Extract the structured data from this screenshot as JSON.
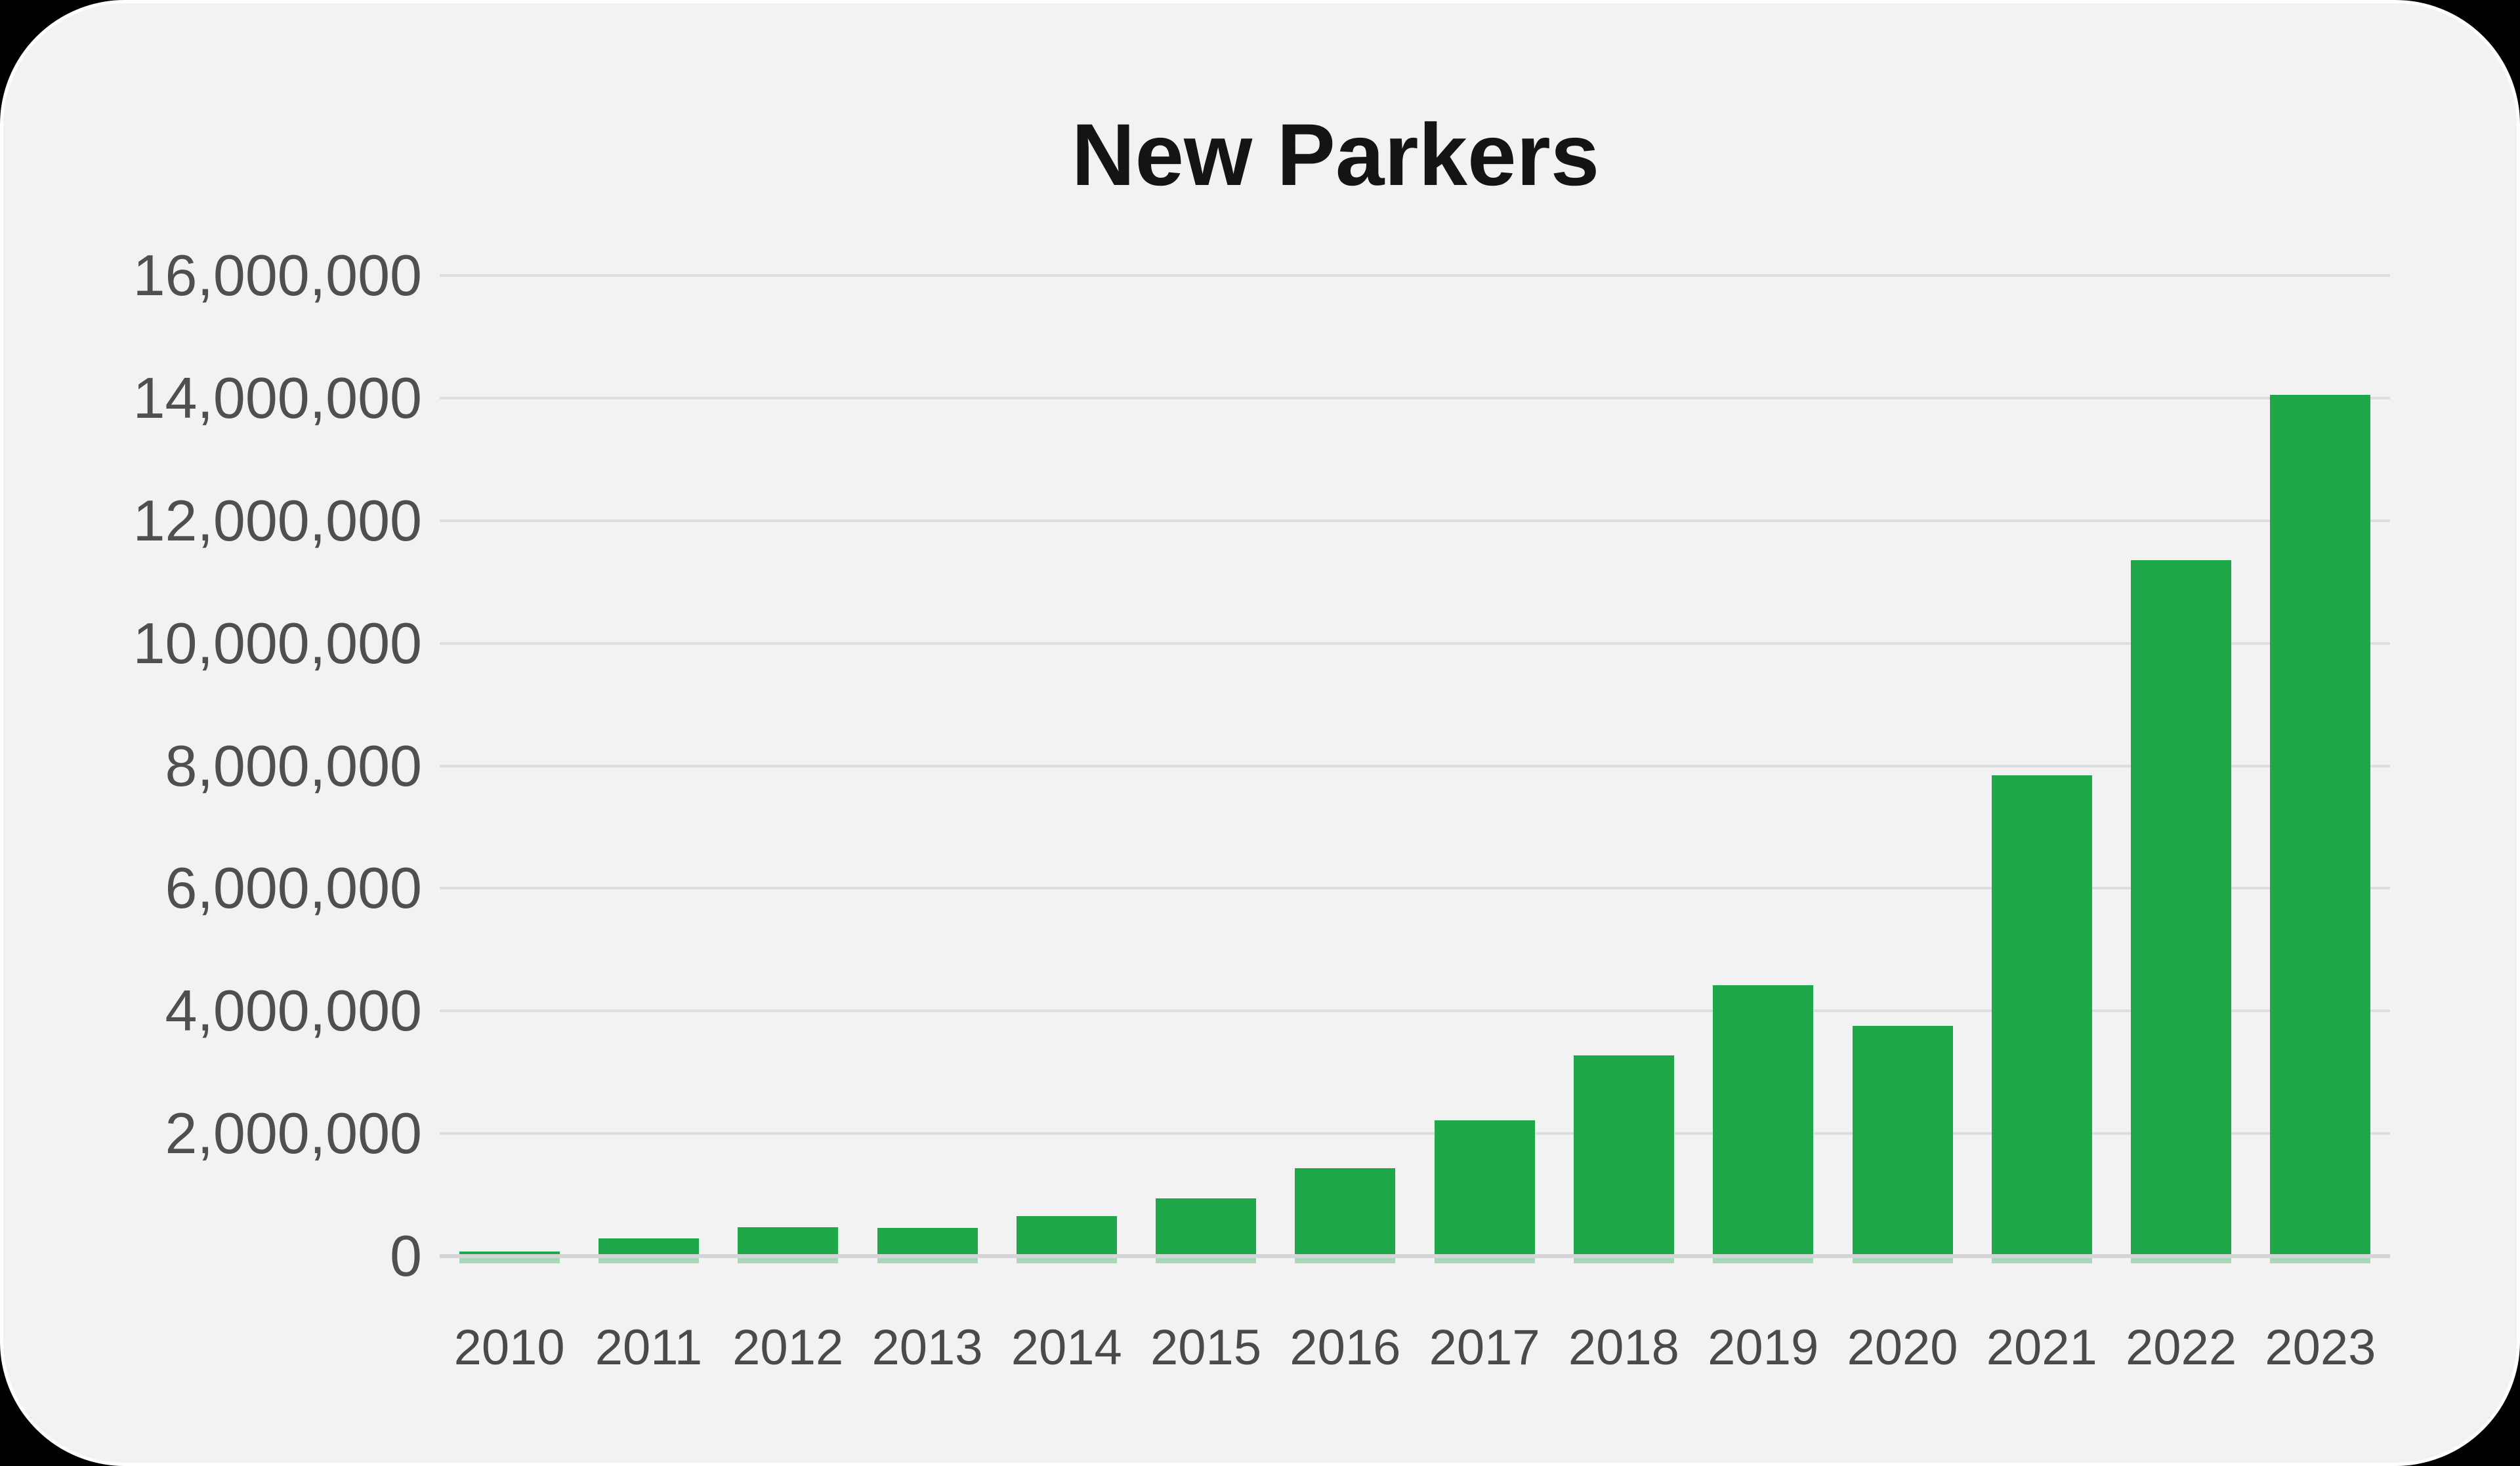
{
  "title": "New Parkers",
  "colors": {
    "page_background": "#000000",
    "card_background": "#f2f2f3",
    "card_border": "#ffffff",
    "bar_fill": "#1fa84a",
    "bar_reflection": "rgba(31,168,74,0.35)",
    "gridline": "#dddddd",
    "baseline": "#d5d5d7",
    "y_label": "#4f4f52",
    "x_label": "#4a4a4d",
    "title_text": "#141414"
  },
  "chart_data": {
    "type": "bar",
    "title": "New Parkers",
    "xlabel": "",
    "ylabel": "",
    "categories": [
      "2010",
      "2011",
      "2012",
      "2013",
      "2014",
      "2015",
      "2016",
      "2017",
      "2018",
      "2019",
      "2020",
      "2021",
      "2022",
      "2023"
    ],
    "values": [
      70000,
      290000,
      470000,
      460000,
      650000,
      940000,
      1430000,
      2220000,
      3280000,
      4420000,
      3760000,
      7850000,
      11350000,
      14050000
    ],
    "ylim": [
      0,
      16000000
    ],
    "ytick_step": 2000000,
    "yticks": [
      {
        "value": 16000000,
        "label": "16,000,000"
      },
      {
        "value": 14000000,
        "label": "14,000,000"
      },
      {
        "value": 12000000,
        "label": "12,000,000"
      },
      {
        "value": 10000000,
        "label": "10,000,000"
      },
      {
        "value": 8000000,
        "label": "8,000,000"
      },
      {
        "value": 6000000,
        "label": "6,000,000"
      },
      {
        "value": 4000000,
        "label": "4,000,000"
      },
      {
        "value": 2000000,
        "label": "2,000,000"
      },
      {
        "value": 0,
        "label": "0"
      }
    ],
    "grid": true,
    "legend": false,
    "bar_color": "#1fa84a"
  }
}
